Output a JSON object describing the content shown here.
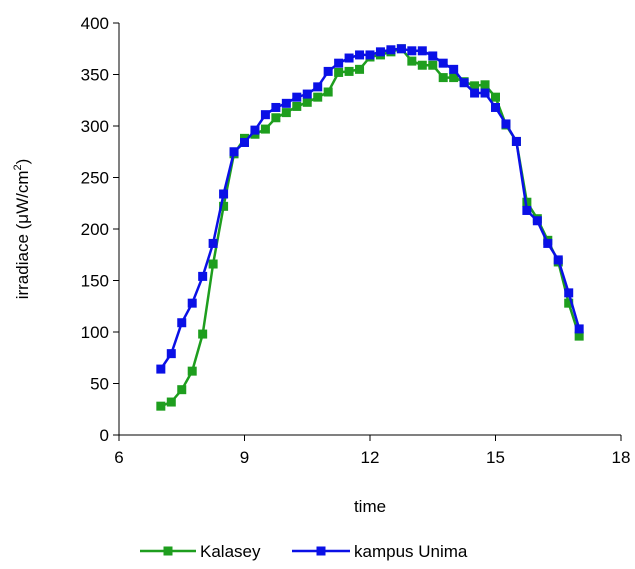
{
  "chart_data": {
    "type": "line",
    "title": "",
    "xlabel": "time",
    "ylabel": "irradiace (μW/cm²)",
    "ylabel_main": "irradiace (μW/cm",
    "ylabel_sup": "2",
    "ylabel_close": ")",
    "xlim": [
      6,
      18
    ],
    "ylim": [
      0,
      400
    ],
    "xticks": [
      6,
      9,
      12,
      15,
      18
    ],
    "yticks": [
      0,
      50,
      100,
      150,
      200,
      250,
      300,
      350,
      400
    ],
    "grid": false,
    "legend_position": "bottom",
    "series": [
      {
        "name": "Kalasey",
        "color": "#1e9e1e",
        "marker": "square",
        "x": [
          7.0,
          7.25,
          7.5,
          7.75,
          8.0,
          8.25,
          8.5,
          8.75,
          9.0,
          9.25,
          9.5,
          9.75,
          10.0,
          10.25,
          10.5,
          10.75,
          11.0,
          11.25,
          11.5,
          11.75,
          12.0,
          12.25,
          12.5,
          12.75,
          13.0,
          13.25,
          13.5,
          13.75,
          14.0,
          14.25,
          14.5,
          14.75,
          15.0,
          15.25,
          15.5,
          15.75,
          16.0,
          16.25,
          16.5,
          16.75,
          17.0
        ],
        "values": [
          28,
          32,
          44,
          62,
          98,
          166,
          222,
          273,
          288,
          292,
          297,
          308,
          313,
          319,
          323,
          328,
          333,
          352,
          353,
          355,
          367,
          369,
          372,
          375,
          363,
          359,
          359,
          347,
          347,
          343,
          339,
          340,
          328,
          301,
          285,
          226,
          210,
          189,
          168,
          128,
          96
        ]
      },
      {
        "name": "kampus Unima",
        "color": "#0a10e6",
        "marker": "square",
        "x": [
          7.0,
          7.25,
          7.5,
          7.75,
          8.0,
          8.25,
          8.5,
          8.75,
          9.0,
          9.25,
          9.5,
          9.75,
          10.0,
          10.25,
          10.5,
          10.75,
          11.0,
          11.25,
          11.5,
          11.75,
          12.0,
          12.25,
          12.5,
          12.75,
          13.0,
          13.25,
          13.5,
          13.75,
          14.0,
          14.25,
          14.5,
          14.75,
          15.0,
          15.25,
          15.5,
          15.75,
          16.0,
          16.25,
          16.5,
          16.75,
          17.0
        ],
        "values": [
          64,
          79,
          109,
          128,
          154,
          186,
          234,
          275,
          284,
          296,
          311,
          318,
          322,
          328,
          331,
          338,
          353,
          361,
          366,
          369,
          369,
          372,
          374,
          375,
          373,
          373,
          368,
          361,
          355,
          342,
          332,
          332,
          318,
          302,
          285,
          218,
          208,
          186,
          170,
          138,
          103
        ]
      }
    ]
  }
}
